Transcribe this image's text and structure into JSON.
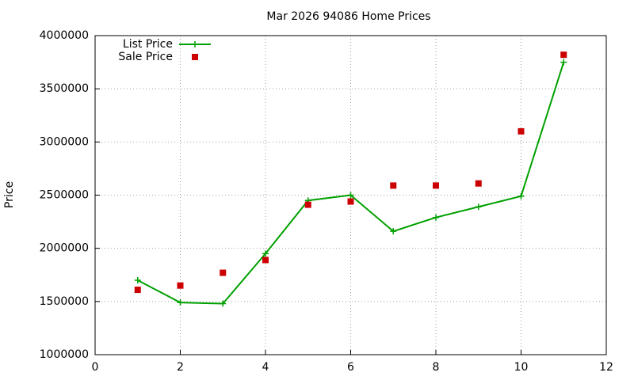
{
  "chart_data": {
    "type": "line",
    "title": "Mar 2026 94086 Home Prices",
    "y_label": "Price",
    "x": [
      1,
      2,
      3,
      4,
      5,
      6,
      7,
      8,
      9,
      10,
      11
    ],
    "series": [
      {
        "name": "List Price",
        "color": "#00a000",
        "style": "line",
        "values": [
          1700000,
          1490000,
          1480000,
          1950000,
          2450000,
          2500000,
          2160000,
          2290000,
          2390000,
          2490000,
          3750000
        ]
      },
      {
        "name": "Sale Price",
        "color": "#cc0000",
        "style": "points",
        "values": [
          1610000,
          1650000,
          1770000,
          1890000,
          2410000,
          2440000,
          2590000,
          2590000,
          2610000,
          3100000,
          3820000
        ]
      }
    ],
    "xlim": [
      0,
      12
    ],
    "xticks": [
      0,
      2,
      4,
      6,
      8,
      10,
      12
    ],
    "ylim": [
      1000000,
      4000000
    ],
    "yticks": [
      1000000,
      1500000,
      2000000,
      2500000,
      3000000,
      3500000,
      4000000
    ],
    "grid": true,
    "legend": "top-left"
  }
}
